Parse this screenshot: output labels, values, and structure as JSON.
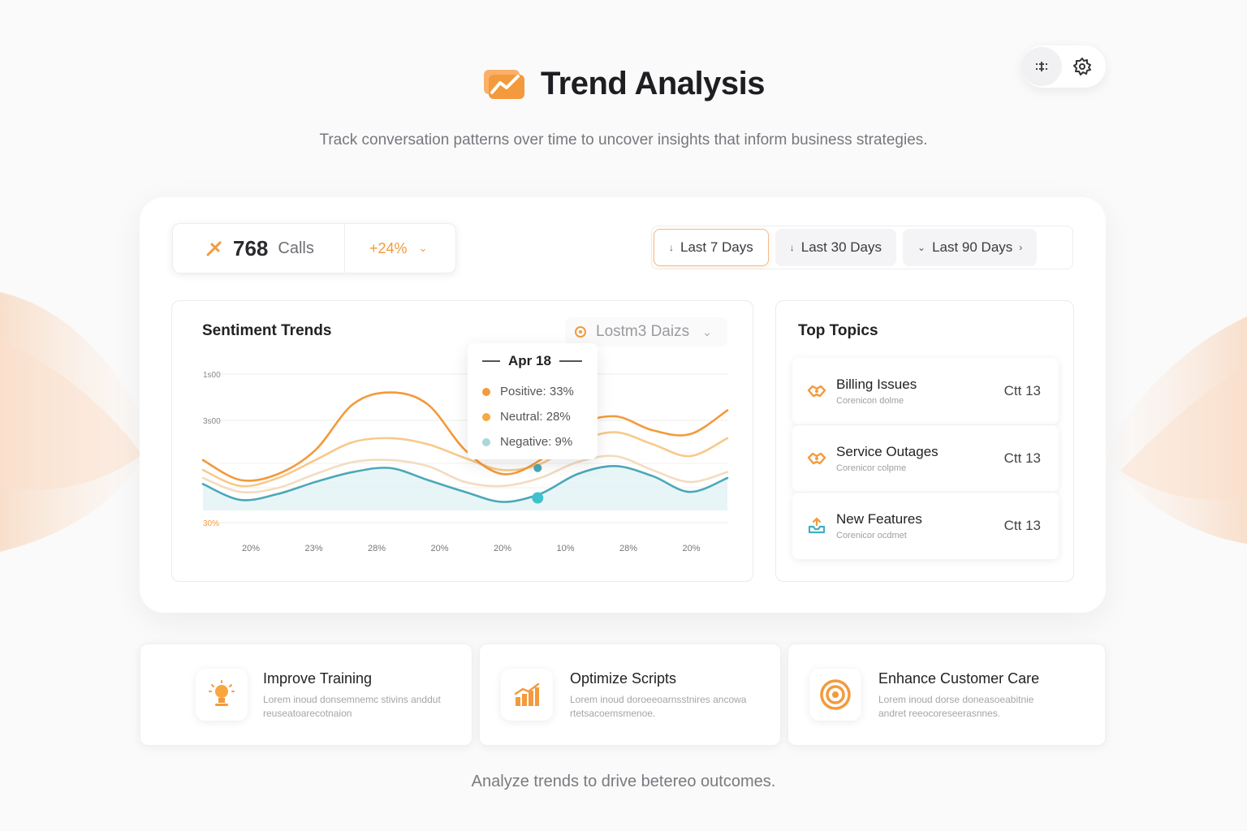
{
  "header": {
    "title": "Trend Analysis",
    "subtitle": "Track conversation patterns over time to uncover insights that inform business strategies.",
    "logo_icon": "trend-chart-icon"
  },
  "top_actions": [
    {
      "icon": "sliders-icon"
    },
    {
      "icon": "gear-icon"
    }
  ],
  "stats": {
    "calls_value": "768",
    "calls_label": "Calls",
    "delta": "+24%"
  },
  "ranges": [
    {
      "label": "Last 7 Days",
      "active": true
    },
    {
      "label": "Last 30 Days",
      "active": false
    },
    {
      "label": "Last 90 Days",
      "active": false
    }
  ],
  "sentiment": {
    "title": "Sentiment Trends",
    "dropdown_label": "Lostm3 Daizs"
  },
  "tooltip": {
    "date": "Apr 18",
    "rows": [
      {
        "label": "Positive: 33%",
        "color": "#f39a3c"
      },
      {
        "label": "Neutral: 28%",
        "color": "#f5a93f"
      },
      {
        "label": "Negative: 9%",
        "color": "#a8d8dc"
      }
    ]
  },
  "chart_data": {
    "type": "line",
    "y_tick_labels": [
      "1s00",
      "3s00",
      "30%"
    ],
    "x_tick_labels": [
      "20%",
      "23%",
      "28%",
      "20%",
      "20%",
      "10%",
      "28%",
      "20%"
    ],
    "series": [
      {
        "color": "#f39a3c",
        "values": [
          62,
          42,
          48,
          72,
          118,
          130,
          118,
          72,
          48,
          62,
          96,
          106,
          92,
          88,
          112
        ]
      },
      {
        "color": "#f7c98a",
        "values": [
          52,
          36,
          44,
          62,
          80,
          84,
          78,
          64,
          52,
          58,
          80,
          90,
          78,
          66,
          84
        ]
      },
      {
        "color": "#f3dcc0",
        "values": [
          44,
          30,
          34,
          48,
          60,
          62,
          56,
          40,
          36,
          44,
          60,
          66,
          52,
          40,
          50
        ]
      },
      {
        "color": "#4ba8b8",
        "values": [
          38,
          22,
          28,
          40,
          50,
          54,
          42,
          30,
          20,
          28,
          48,
          56,
          46,
          30,
          44
        ]
      }
    ],
    "ylim": [
      0,
      150
    ],
    "grid": true
  },
  "topics": {
    "title": "Top Topics",
    "items": [
      {
        "name": "Billing Issues",
        "sub": "Corenicon dolme",
        "count": "Ctt 13",
        "icon": "handshake-icon"
      },
      {
        "name": "Service Outages",
        "sub": "Corenicor colpme",
        "count": "Ctt 13",
        "icon": "handshake-icon"
      },
      {
        "name": "New Features",
        "sub": "Corenicor ocdmet",
        "count": "Ctt 13",
        "icon": "inbox-icon"
      }
    ]
  },
  "recommendations": [
    {
      "title": "Improve Training",
      "desc": "Lorem inoud donsemnemc stivins anddut reuseatoarecotnaion",
      "icon": "lightbulb-icon"
    },
    {
      "title": "Optimize Scripts",
      "desc": "Lorem inoud doroeeoarnsstnires ancowa rtetsacoemsmenoe.",
      "icon": "bar-chart-icon"
    },
    {
      "title": "Enhance Customer Care",
      "desc": "Lorem inoud dorse doneasoeabitnie andret reeocoreseerasnnes.",
      "icon": "target-icon"
    }
  ],
  "footer": "Analyze trends to drive betereo outcomes."
}
